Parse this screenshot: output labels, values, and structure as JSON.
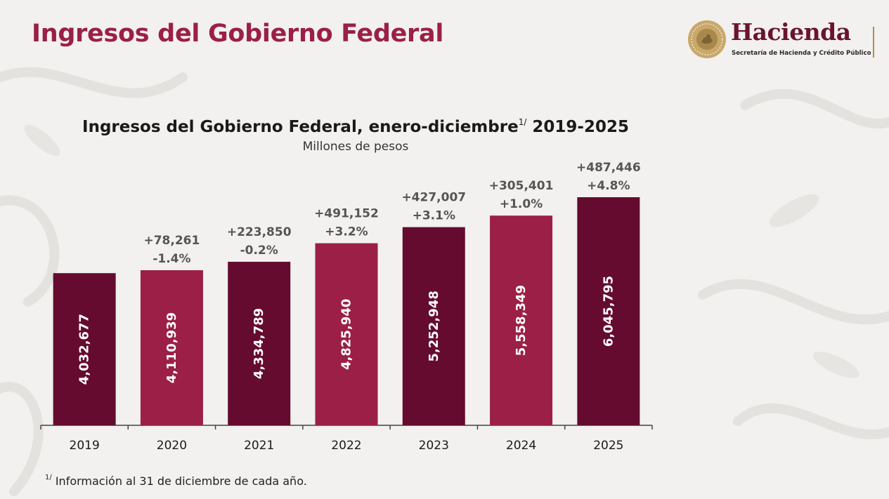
{
  "header": {
    "title": "Ingresos del Gobierno Federal",
    "brand_name": "Hacienda",
    "brand_subtitle": "Secretaría de Hacienda y Crédito Público"
  },
  "colors": {
    "dark_bar": "#650b2f",
    "light_bar": "#9b1f47",
    "title": "#9b1f47",
    "brand": "#6b1331",
    "gold": "#b58d4a"
  },
  "chart_data": {
    "type": "bar",
    "title": "Ingresos del Gobierno Federal, enero-diciembre",
    "title_superscript": "1/",
    "title_suffix": "2019-2025",
    "subtitle": "Millones de pesos",
    "xlabel": "",
    "ylabel": "",
    "ylim": [
      0,
      6500000
    ],
    "categories": [
      "2019",
      "2020",
      "2021",
      "2022",
      "2023",
      "2024",
      "2025"
    ],
    "values": [
      4032677,
      4110939,
      4334789,
      4825940,
      5252948,
      5558349,
      6045795
    ],
    "value_labels": [
      "4,032,677",
      "4,110,939",
      "4,334,789",
      "4,825,940",
      "5,252,948",
      "5,558,349",
      "6,045,795"
    ],
    "change_abs": [
      "",
      "+78,261",
      "+223,850",
      "+491,152",
      "+427,007",
      "+305,401",
      "+487,446"
    ],
    "change_pct": [
      "",
      "-1.4%",
      "-0.2%",
      "+3.2%",
      "+3.1%",
      "+1.0%",
      "+4.8%"
    ],
    "bar_colors": [
      "#650b2f",
      "#9b1f47",
      "#650b2f",
      "#9b1f47",
      "#650b2f",
      "#9b1f47",
      "#650b2f"
    ]
  },
  "footnote": {
    "marker": "1/",
    "text": "Información al 31 de diciembre de cada año."
  },
  "decor": {
    "seal_icon": "national-seal-icon",
    "pattern": "floral-watermark"
  }
}
